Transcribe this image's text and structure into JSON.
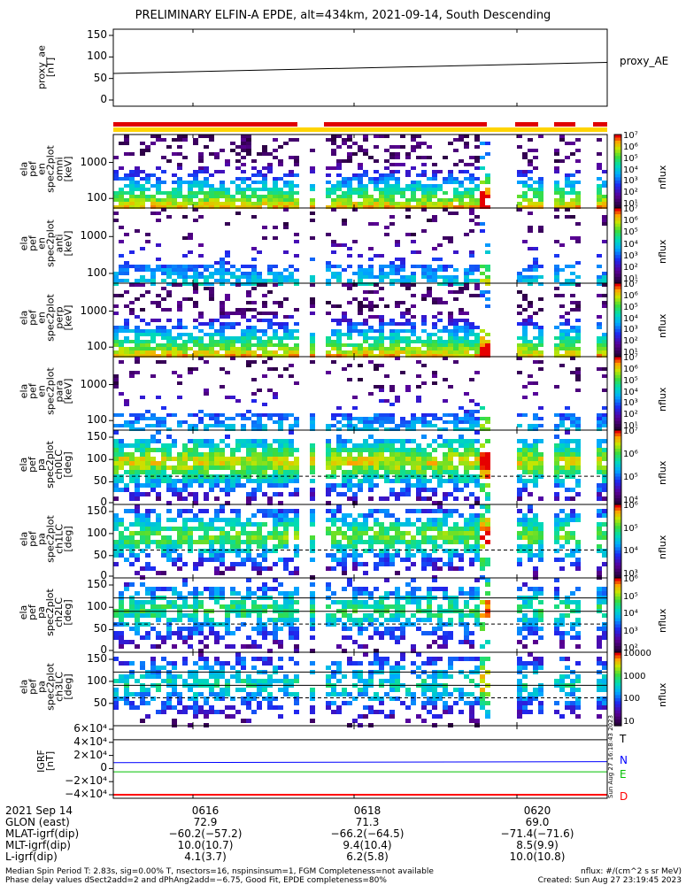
{
  "title": "PRELIMINARY ELFIN-A EPDE, alt=434km, 2021-09-14, South Descending",
  "side_stamp": "Sun Aug 27 16:18:43 2023",
  "colors": {
    "red_bar": "#e00000",
    "yellow_bar": "#ffd400",
    "bt": "#000000",
    "bn": "#0000ff",
    "be": "#00c000",
    "bd": "#ff0000"
  },
  "panels": [
    {
      "id": "proxy_ae",
      "ylabel": [
        "proxy_ae",
        "[nT]"
      ],
      "yticks": [
        "150",
        "100",
        "50",
        "0"
      ],
      "right_label": "proxy_AE"
    },
    {
      "id": "en0",
      "ylabel": [
        "ela",
        "pef",
        "en",
        "spec2plot",
        "omni",
        "[keV]"
      ],
      "yticks": [
        "1000",
        "100"
      ],
      "cbar_ticks": [
        "10⁷",
        "10⁶",
        "10⁵",
        "10⁴",
        "10³",
        "10²",
        "10¹"
      ],
      "cbar_label": "nflux"
    },
    {
      "id": "en1",
      "ylabel": [
        "ela",
        "pef",
        "en",
        "spec2plot",
        "anti",
        "[keV]"
      ],
      "yticks": [
        "1000",
        "100"
      ],
      "cbar_ticks": [
        "10⁷",
        "10⁶",
        "10⁵",
        "10⁴",
        "10³",
        "10²",
        "10¹"
      ],
      "cbar_label": "nflux"
    },
    {
      "id": "en2",
      "ylabel": [
        "ela",
        "pef",
        "en",
        "spec2plot",
        "perp",
        "[keV]"
      ],
      "yticks": [
        "1000",
        "100"
      ],
      "cbar_ticks": [
        "10⁷",
        "10⁶",
        "10⁵",
        "10⁴",
        "10³",
        "10²",
        "10¹"
      ],
      "cbar_label": "nflux"
    },
    {
      "id": "en3",
      "ylabel": [
        "ela",
        "pef",
        "en",
        "spec2plot",
        "para",
        "[keV]"
      ],
      "yticks": [
        "1000",
        "100"
      ],
      "cbar_ticks": [
        "10⁷",
        "10⁶",
        "10⁵",
        "10⁴",
        "10³",
        "10²",
        "10¹"
      ],
      "cbar_label": "nflux"
    },
    {
      "id": "pa0",
      "ylabel": [
        "ela",
        "pef",
        "pa",
        "spec2plot",
        "ch0LC",
        "[deg]"
      ],
      "yticks": [
        "150",
        "100",
        "50",
        "0"
      ],
      "cbar_ticks": [
        "10⁷",
        "10⁶",
        "10⁵",
        "10⁴"
      ],
      "cbar_label": "nflux"
    },
    {
      "id": "pa1",
      "ylabel": [
        "ela",
        "pef",
        "pa",
        "spec2plot",
        "ch1LC",
        "[deg]"
      ],
      "yticks": [
        "150",
        "100",
        "50",
        "0"
      ],
      "cbar_ticks": [
        "10⁶",
        "10⁵",
        "10⁴",
        "10³"
      ],
      "cbar_label": "nflux"
    },
    {
      "id": "pa2",
      "ylabel": [
        "ela",
        "pef",
        "pa",
        "spec2plot",
        "ch2LC",
        "[deg]"
      ],
      "yticks": [
        "150",
        "100",
        "50",
        "0"
      ],
      "cbar_ticks": [
        "10⁶",
        "10⁵",
        "10⁴",
        "10³",
        "10²"
      ],
      "cbar_label": "nflux"
    },
    {
      "id": "pa3",
      "ylabel": [
        "ela",
        "pef",
        "pa",
        "spec2plot",
        "ch3LC",
        "[deg]"
      ],
      "yticks": [
        "150",
        "100",
        "50"
      ],
      "cbar_ticks": [
        "10000",
        "1000",
        "100",
        "10"
      ],
      "cbar_label": "nflux"
    },
    {
      "id": "igrf",
      "ylabel": [
        "IGRF",
        "[nT]"
      ],
      "yticks": [
        "6×10⁴",
        "4×10⁴",
        "2×10⁴",
        "0",
        "−2×10⁴",
        "−4×10⁴"
      ],
      "right_labels": [
        "T",
        "N",
        "E",
        "D"
      ]
    }
  ],
  "info": {
    "rows": [
      {
        "label": "2021 Sep 14",
        "v1": "0616",
        "v2": "0618",
        "v3": "0620"
      },
      {
        "label": "GLON (east)",
        "v1": "72.9",
        "v2": "71.3",
        "v3": "69.0"
      },
      {
        "label": "MLAT-igrf(dip)",
        "v1": "−60.2(−57.2)",
        "v2": "−66.2(−64.5)",
        "v3": "−71.4(−71.6)"
      },
      {
        "label": "MLT-igrf(dip)",
        "v1": "10.0(10.7)",
        "v2": "9.4(10.4)",
        "v3": "8.5(9.9)"
      },
      {
        "label": "L-igrf(dip)",
        "v1": "4.1(3.7)",
        "v2": "6.2(5.8)",
        "v3": "10.0(10.8)"
      }
    ]
  },
  "footer": {
    "line1": "Median Spin Period T: 2.83s, sig=0.00% T, nsectors=16, nspinsinsum=1, FGM Completeness=not available",
    "line2": "Phase delay values dSect2add=2 and dPhAng2add=−6.75, Good Fit, EPDE completeness=80%",
    "right1": "nflux: #/(cm^2 s sr MeV)",
    "right2": "Created: Sun Aug 27 23:19:45 2023"
  },
  "chart_data": {
    "type": "heatmap",
    "title": "PRELIMINARY ELFIN-A EPDE, alt=434km, 2021-09-14, South Descending",
    "x_ticks": [
      "0616",
      "0618",
      "0620"
    ],
    "proxy_ae": {
      "type": "line",
      "series": [
        {
          "name": "proxy_AE",
          "x": [
            "start",
            "end"
          ],
          "values": [
            62,
            87
          ]
        }
      ],
      "ylim": [
        0,
        150
      ]
    },
    "energy_ylim_keV": [
      60,
      7000
    ],
    "pitch_angle_ylim_deg": [
      0,
      180
    ],
    "igrf_ylim_nT": [
      -40000,
      60000
    ],
    "igrf": {
      "type": "line",
      "series": [
        {
          "name": "T",
          "values": [
            44000,
            44000
          ]
        },
        {
          "name": "N",
          "values": [
            9000,
            10500
          ]
        },
        {
          "name": "E",
          "values": [
            -5000,
            -5000
          ]
        },
        {
          "name": "D",
          "values": [
            -40000,
            -40000
          ]
        }
      ]
    }
  }
}
